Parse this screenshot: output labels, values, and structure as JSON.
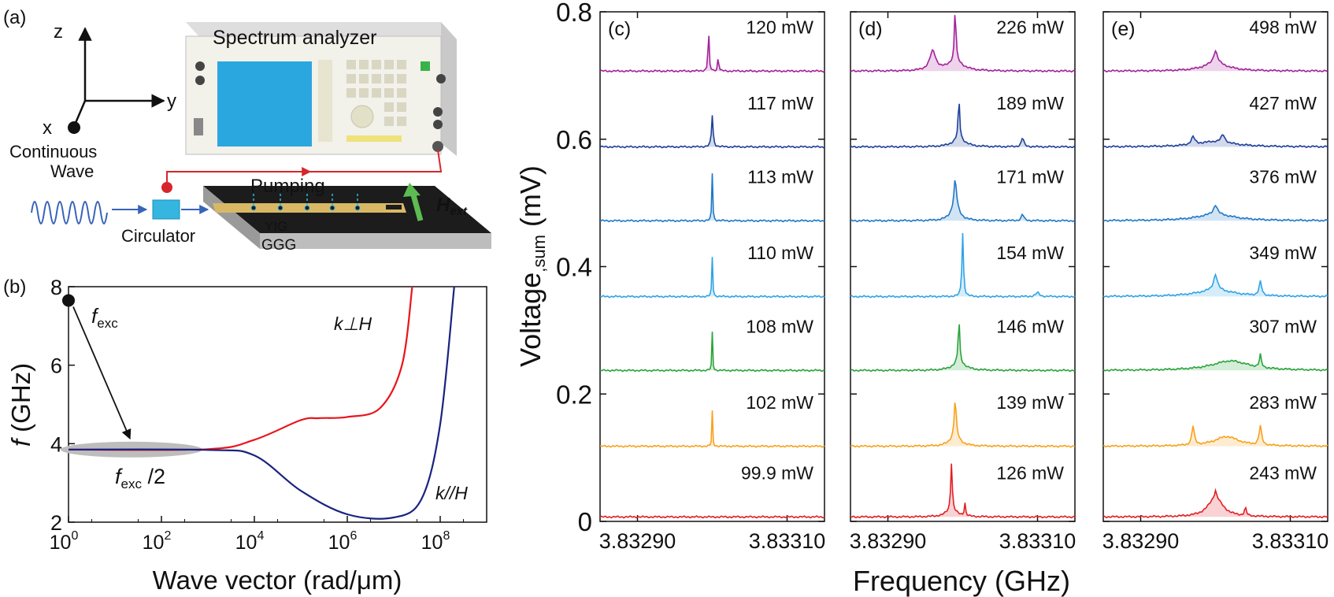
{
  "panel_labels": {
    "a": "(a)",
    "b": "(b)",
    "c": "(c)",
    "d": "(d)",
    "e": "(e)"
  },
  "setup": {
    "axis_x": "x",
    "axis_y": "y",
    "axis_z": "z",
    "source_label_1": "Continuous",
    "source_label_2": "Wave",
    "analyzer_label": "Spectrum analyzer",
    "circulator_label": "Circulator",
    "pumping_label": "Pumping",
    "field_label": "H",
    "field_sub": "ext",
    "film_label": "YIG",
    "substrate_label": "GGG",
    "colors": {
      "screen": "#2aa7df",
      "pump_text": "#35b6e0",
      "field_arrow": "#5cbc52",
      "probe": "#d7262b",
      "feed": "#3763b9"
    }
  },
  "chart_data": [
    {
      "type": "line",
      "panel": "b",
      "xlabel": "Wave vector (rad/μm)",
      "ylabel_italic": "f",
      "ylabel_rest": " (GHz)",
      "xscale": "log",
      "xlim": [
        1,
        1000000000
      ],
      "ylim": [
        2,
        8
      ],
      "xticks": [
        1,
        100,
        10000,
        1000000,
        100000000
      ],
      "xtick_bases": [
        "10",
        "10",
        "10",
        "10",
        "10"
      ],
      "xtick_exps": [
        "0",
        "2",
        "4",
        "6",
        "8"
      ],
      "yticks": [
        "2",
        "4",
        "6",
        "8"
      ],
      "ytick_values": [
        2,
        4,
        6,
        8
      ],
      "series": [
        {
          "name": "k⊥H",
          "color": "#e8151b",
          "x": [
            1,
            1000,
            10000,
            100000,
            250000,
            1000000,
            5000000,
            15000000,
            25000000
          ],
          "y": [
            3.85,
            3.86,
            4.1,
            4.6,
            4.65,
            4.68,
            4.9,
            6.0,
            8.0
          ]
        },
        {
          "name": "k//H",
          "color": "#1a237e",
          "x": [
            1,
            1000,
            10000,
            100000,
            1000000,
            10000000,
            40000000,
            100000000,
            200000000
          ],
          "y": [
            3.85,
            3.84,
            3.7,
            2.8,
            2.2,
            2.12,
            2.6,
            4.5,
            8.0
          ]
        }
      ],
      "annotations": {
        "point": {
          "x": 1,
          "y": 7.65,
          "label": "f",
          "label_sub": "exc"
        },
        "half": {
          "x": 1,
          "y": 3.85,
          "label": "f",
          "label_sub": "exc",
          "label_tail": " /2"
        },
        "curve_label_perp": "k⊥H",
        "curve_label_par": "k//H"
      }
    },
    {
      "type": "line",
      "panel": "c-e",
      "xlabel": "Frequency (GHz)",
      "ylabel": "Voltage",
      "ylabel_sub": ",sum",
      "ylabel_tail": " (mV)",
      "xlim": [
        3.83285,
        3.83315
      ],
      "ylim": [
        0,
        0.8
      ],
      "xticks": [
        "3.83290",
        "3.83310"
      ],
      "xtick_values": [
        3.8329,
        3.8331
      ],
      "yticks": [
        "0",
        "0.2",
        "0.4",
        "0.6",
        "0.8"
      ],
      "ytick_values": [
        0,
        0.2,
        0.4,
        0.6,
        0.8
      ],
      "trace_colors": [
        "#e31e24",
        "#f7a21b",
        "#2aa33b",
        "#2fa3e6",
        "#1f78c8",
        "#1f3f9a",
        "#a3219a"
      ],
      "baselines": [
        0.007,
        0.118,
        0.237,
        0.353,
        0.472,
        0.588,
        0.707
      ],
      "panels": [
        {
          "label": "(c)",
          "powers": [
            "99.9 mW",
            "102 mW",
            "108 mW",
            "110 mW",
            "113 mW",
            "117 mW",
            "120 mW"
          ],
          "peaks": [
            [],
            [
              {
                "f": 3.833,
                "h": 0.055,
                "w": 6e-07
              }
            ],
            [
              {
                "f": 3.833,
                "h": 0.06,
                "w": 6e-07
              }
            ],
            [
              {
                "f": 3.833,
                "h": 0.062,
                "w": 7e-07
              }
            ],
            [
              {
                "f": 3.833,
                "h": 0.075,
                "w": 7e-07
              }
            ],
            [
              {
                "f": 3.833,
                "h": 0.05,
                "w": 1.2e-06
              }
            ],
            [
              {
                "f": 3.832995,
                "h": 0.075,
                "w": 8e-07
              },
              {
                "f": 3.833008,
                "h": 0.025,
                "w": 8e-07
              }
            ]
          ]
        },
        {
          "label": "(d)",
          "powers": [
            "126 mW",
            "139 mW",
            "146 mW",
            "154 mW",
            "171 mW",
            "189 mW",
            "226 mW"
          ],
          "peaks": [
            [
              {
                "f": 3.832985,
                "h": 0.075,
                "w": 1.2e-06
              },
              {
                "f": 3.833003,
                "h": 0.02,
                "w": 1e-06
              },
              {
                "f": 3.832985,
                "h": 0.01,
                "w": 9e-06
              }
            ],
            [
              {
                "f": 3.83299,
                "h": 0.06,
                "w": 1.5e-06
              },
              {
                "f": 3.83299,
                "h": 0.015,
                "w": 8e-06
              }
            ],
            [
              {
                "f": 3.832995,
                "h": 0.07,
                "w": 1.2e-06
              },
              {
                "f": 3.832995,
                "h": 0.012,
                "w": 1e-05
              }
            ],
            [
              {
                "f": 3.833,
                "h": 0.1,
                "w": 1.2e-06
              },
              {
                "f": 3.8331,
                "h": 0.006,
                "w": 3e-06
              }
            ],
            [
              {
                "f": 3.83299,
                "h": 0.045,
                "w": 2e-06
              },
              {
                "f": 3.83299,
                "h": 0.02,
                "w": 7e-06
              },
              {
                "f": 3.83308,
                "h": 0.01,
                "w": 2e-06
              }
            ],
            [
              {
                "f": 3.832995,
                "h": 0.065,
                "w": 1.2e-06
              },
              {
                "f": 3.832995,
                "h": 0.012,
                "w": 1e-05
              },
              {
                "f": 3.83308,
                "h": 0.014,
                "w": 2e-06
              }
            ],
            [
              {
                "f": 3.83299,
                "h": 0.085,
                "w": 1.2e-06
              },
              {
                "f": 3.83296,
                "h": 0.03,
                "w": 5e-06
              },
              {
                "f": 3.83299,
                "h": 0.015,
                "w": 1.2e-05
              }
            ]
          ]
        },
        {
          "label": "(e)",
          "powers": [
            "243 mW",
            "283 mW",
            "307 mW",
            "349 mW",
            "376 mW",
            "427 mW",
            "498 mW"
          ],
          "peaks": [
            [
              {
                "f": 3.833,
                "h": 0.03,
                "w": 1.2e-05
              },
              {
                "f": 3.833,
                "h": 0.012,
                "w": 1.5e-06
              },
              {
                "f": 3.83304,
                "h": 0.012,
                "w": 1.5e-06
              }
            ],
            [
              {
                "f": 3.83297,
                "h": 0.03,
                "w": 2e-06
              },
              {
                "f": 3.83306,
                "h": 0.03,
                "w": 2e-06
              },
              {
                "f": 3.833015,
                "h": 0.015,
                "w": 2e-05
              }
            ],
            [
              {
                "f": 3.83302,
                "h": 0.015,
                "w": 3e-05
              },
              {
                "f": 3.83306,
                "h": 0.02,
                "w": 1.5e-06
              }
            ],
            [
              {
                "f": 3.833,
                "h": 0.025,
                "w": 3e-06
              },
              {
                "f": 3.83306,
                "h": 0.022,
                "w": 2e-06
              },
              {
                "f": 3.833,
                "h": 0.01,
                "w": 3e-05
              }
            ],
            [
              {
                "f": 3.833,
                "h": 0.015,
                "w": 3e-06
              },
              {
                "f": 3.833,
                "h": 0.01,
                "w": 3e-05
              }
            ],
            [
              {
                "f": 3.83297,
                "h": 0.012,
                "w": 3e-06
              },
              {
                "f": 3.83301,
                "h": 0.012,
                "w": 3e-06
              },
              {
                "f": 3.833,
                "h": 0.008,
                "w": 3e-05
              }
            ],
            [
              {
                "f": 3.833,
                "h": 0.02,
                "w": 3e-06
              },
              {
                "f": 3.833,
                "h": 0.012,
                "w": 2e-05
              }
            ]
          ]
        }
      ]
    }
  ]
}
